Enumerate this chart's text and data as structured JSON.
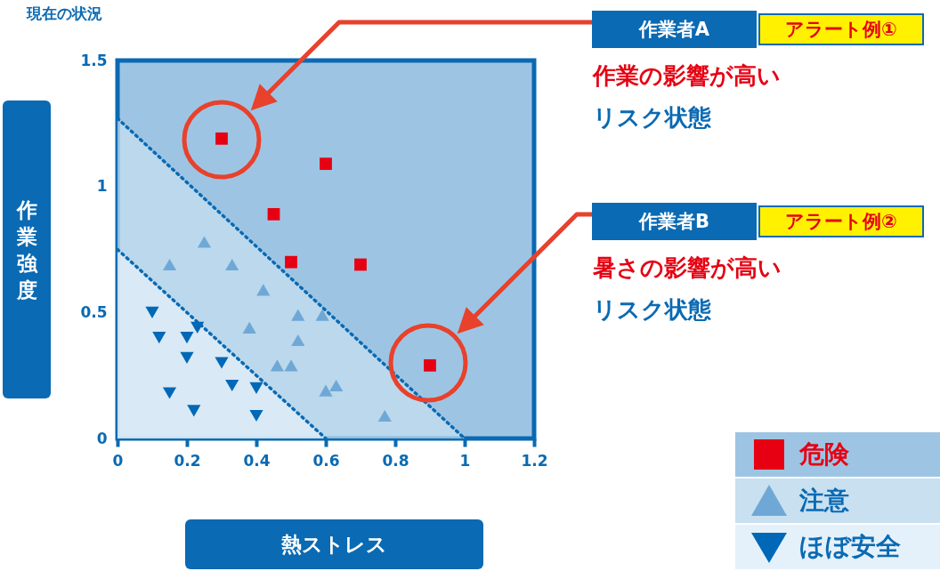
{
  "chart_data": {
    "type": "scatter",
    "title": "現在の状況",
    "xlabel": "熱ストレス",
    "ylabel": "作業強度",
    "xlim": [
      0,
      1.2
    ],
    "ylim": [
      0,
      1.5
    ],
    "xticks": [
      0,
      0.2,
      0.4,
      0.6,
      0.8,
      1,
      1.2
    ],
    "yticks": [
      0,
      0.5,
      1,
      1.5
    ],
    "grid": false,
    "legend": "bottom right",
    "series": [
      {
        "type": "area",
        "color": "#c8e0f0",
        "line_style": "dotted",
        "x": [
          0,
          1
        ],
        "values": [
          1.27,
          0
        ]
      },
      {
        "type": "area",
        "color": "#e5f1fa",
        "line_style": "dotted",
        "x": [
          0,
          0.6
        ],
        "values": [
          0.75,
          0
        ]
      },
      {
        "name": "危険",
        "color": "#e60012",
        "marker": "square",
        "x": [
          0.3,
          0.6,
          0.45,
          0.5,
          0.7,
          0.9
        ],
        "values": [
          1.19,
          1.09,
          0.89,
          0.7,
          0.69,
          0.29
        ]
      },
      {
        "name": "注意",
        "color": "#6fa8d6",
        "marker": "triangle",
        "x": [
          0.25,
          0.15,
          0.33,
          0.42,
          0.52,
          0.59,
          0.38,
          0.52,
          0.46,
          0.5,
          0.6,
          0.63,
          0.77
        ],
        "values": [
          0.78,
          0.69,
          0.69,
          0.59,
          0.49,
          0.49,
          0.44,
          0.39,
          0.29,
          0.29,
          0.19,
          0.21,
          0.09
        ]
      },
      {
        "name": "ほぼ安全",
        "color": "#0068b7",
        "marker": "triangle-down",
        "x": [
          0.1,
          0.23,
          0.12,
          0.2,
          0.2,
          0.3,
          0.33,
          0.4,
          0.15,
          0.22,
          0.4
        ],
        "values": [
          0.5,
          0.44,
          0.4,
          0.4,
          0.32,
          0.3,
          0.21,
          0.2,
          0.18,
          0.11,
          0.09
        ]
      }
    ],
    "annotations": [
      "作業者A",
      "アラート例①",
      "作業の影響が高い",
      "リスク状態",
      "作業者B",
      "アラート例②",
      "暑さの影響が高い",
      "リスク状態"
    ]
  }
}
